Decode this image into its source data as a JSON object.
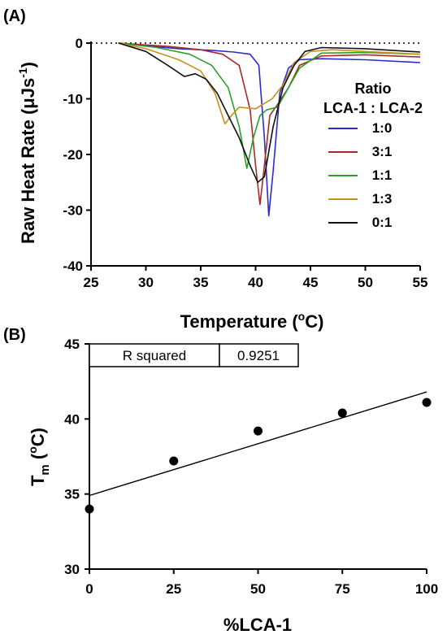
{
  "chart_data": [
    {
      "panel": "(A)",
      "type": "line",
      "xlabel": "Temperature",
      "xlabel_unit": "(°C)",
      "ylabel": "Raw Heat Rate",
      "ylabel_unit": "(μJs⁻¹)",
      "xlim": [
        25,
        55
      ],
      "ylim": [
        -40,
        0
      ],
      "xticks": [
        25,
        30,
        35,
        40,
        45,
        50,
        55
      ],
      "yticks": [
        0,
        -10,
        -20,
        -30,
        -40
      ],
      "baseline_dotted_at": 0,
      "legend": {
        "title_line1": "Ratio",
        "title_line2": "LCA-1 : LCA-2",
        "placement": "right"
      },
      "series": [
        {
          "name": "1:0",
          "color": "#2b2bd1",
          "x": [
            27.5,
            30,
            33,
            36,
            38,
            39.5,
            40.3,
            40.8,
            41.2,
            41.6,
            42.2,
            43,
            44,
            46,
            50,
            55
          ],
          "y": [
            0,
            -0.5,
            -1,
            -1.3,
            -1.6,
            -2,
            -4,
            -17,
            -31,
            -23,
            -9,
            -4.5,
            -3,
            -2.8,
            -3,
            -3.5
          ]
        },
        {
          "name": "3:1",
          "color": "#a52a2a",
          "x": [
            27.5,
            32,
            35,
            37,
            38.5,
            39.5,
            40,
            40.4,
            40.8,
            41.3,
            42,
            43,
            44,
            46,
            50,
            55
          ],
          "y": [
            0,
            -0.6,
            -1.2,
            -2,
            -4,
            -12,
            -22,
            -29,
            -22,
            -13,
            -11,
            -8,
            -4,
            -2.3,
            -2.1,
            -2.5
          ]
        },
        {
          "name": "1:1",
          "color": "#2ca02c",
          "x": [
            27.5,
            31,
            34,
            36,
            37.5,
            38.5,
            39.2,
            39.8,
            40.4,
            41,
            42,
            43,
            44,
            46,
            50,
            55
          ],
          "y": [
            0,
            -0.8,
            -2,
            -4,
            -8,
            -15,
            -22.5,
            -17,
            -13,
            -12,
            -11.5,
            -8,
            -4.5,
            -1.8,
            -1.7,
            -2
          ]
        },
        {
          "name": "1:3",
          "color": "#c89118",
          "x": [
            27.5,
            30,
            33,
            35,
            36.3,
            37.2,
            37.8,
            38.5,
            40,
            41.5,
            42.5,
            43.5,
            45,
            47,
            50,
            55
          ],
          "y": [
            0,
            -1,
            -3,
            -5,
            -9,
            -14.5,
            -13,
            -11.5,
            -11.8,
            -10,
            -7.5,
            -3.5,
            -1.5,
            -1.2,
            -1.5,
            -2
          ]
        },
        {
          "name": "0:1",
          "color": "#111111",
          "x": [
            27.5,
            30,
            32,
            33.5,
            34.5,
            35.5,
            36.5,
            37.5,
            38.5,
            39.5,
            40.2,
            40.8,
            41.6,
            42.5,
            43.5,
            44.5,
            46,
            50,
            55
          ],
          "y": [
            0,
            -1.5,
            -4,
            -6,
            -5.5,
            -6.5,
            -9,
            -13,
            -17,
            -22,
            -25,
            -24,
            -15,
            -8,
            -4,
            -1.5,
            -0.8,
            -1,
            -1.6
          ]
        }
      ]
    },
    {
      "panel": "(B)",
      "type": "scatter",
      "xlabel": "%LCA-1",
      "ylabel_main": "T",
      "ylabel_sub": "m",
      "ylabel_unit": "(°C)",
      "xlim": [
        0,
        100
      ],
      "ylim": [
        30,
        45
      ],
      "xticks": [
        0,
        25,
        50,
        75,
        100
      ],
      "yticks": [
        30,
        35,
        40,
        45
      ],
      "x": [
        0,
        25,
        50,
        75,
        100
      ],
      "y": [
        34.0,
        37.2,
        39.2,
        40.4,
        41.1
      ],
      "fit_line": {
        "x": [
          0,
          100
        ],
        "y": [
          34.9,
          41.8
        ]
      },
      "r_squared_label": "R squared",
      "r_squared_value": "0.9251"
    }
  ]
}
